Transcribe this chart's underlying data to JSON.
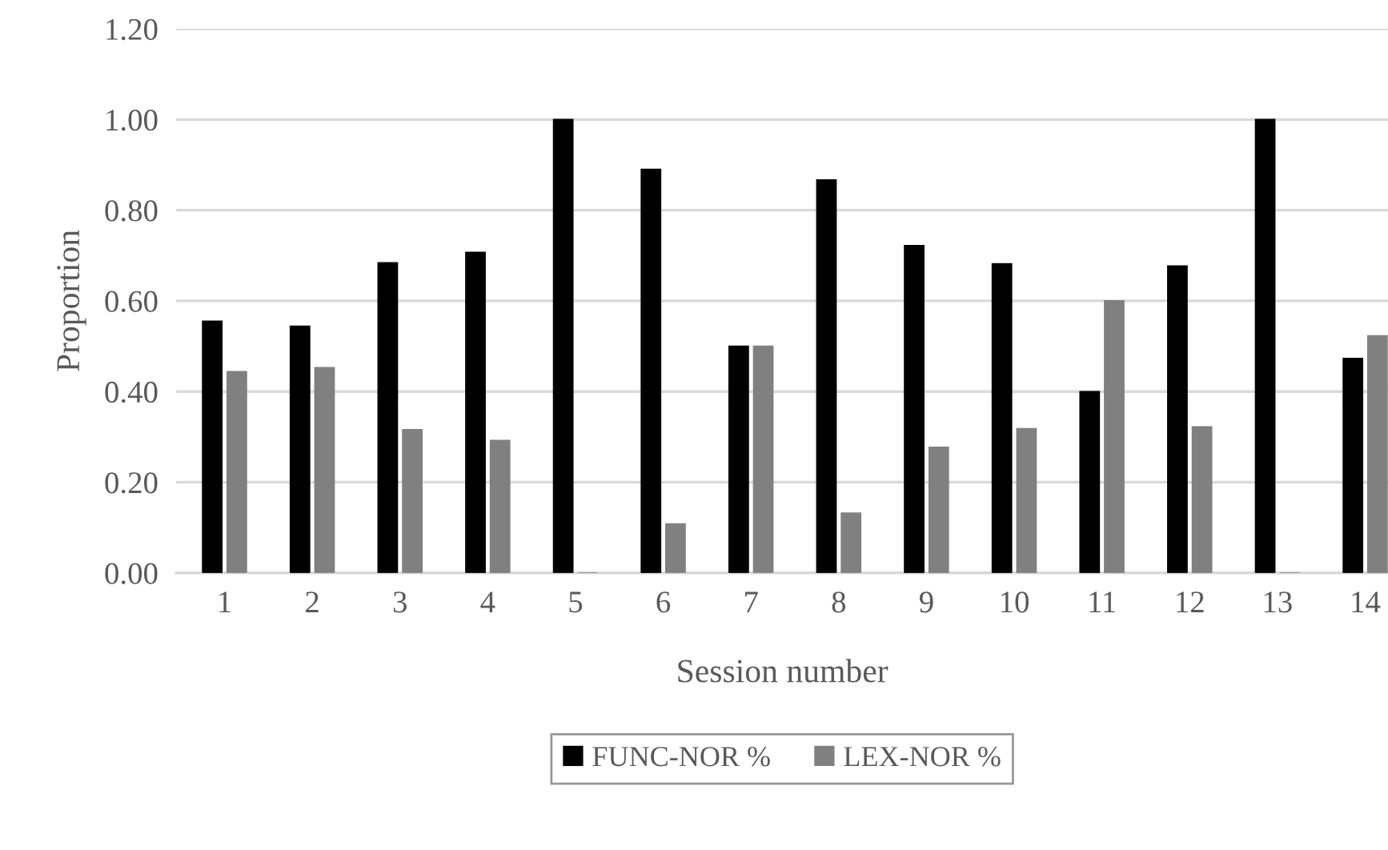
{
  "chart_data": {
    "type": "bar",
    "xlabel": "Session number",
    "ylabel": "Proportion",
    "categories": [
      "1",
      "2",
      "3",
      "4",
      "5",
      "6",
      "7",
      "8",
      "9",
      "10",
      "11",
      "12",
      "13",
      "14"
    ],
    "series": [
      {
        "name": "FUNC-NOR %",
        "color": "#000000",
        "values": [
          0.555,
          0.544,
          0.684,
          0.707,
          1.0,
          0.89,
          0.5,
          0.867,
          0.722,
          0.682,
          0.4,
          0.677,
          1.0,
          0.473
        ]
      },
      {
        "name": "LEX-NOR %",
        "color": "#808080",
        "values": [
          0.444,
          0.453,
          0.316,
          0.292,
          0.0,
          0.108,
          0.5,
          0.132,
          0.277,
          0.318,
          0.6,
          0.322,
          0.0,
          0.523
        ]
      }
    ],
    "ylim": [
      0,
      1.2
    ],
    "yticks": [
      {
        "value": 0,
        "label": "0.00"
      },
      {
        "value": 0.2,
        "label": "0.20"
      },
      {
        "value": 0.4,
        "label": "0.40"
      },
      {
        "value": 0.6,
        "label": "0.60"
      },
      {
        "value": 0.8,
        "label": "0.80"
      },
      {
        "value": 1.0,
        "label": "1.00"
      },
      {
        "value": 1.2,
        "label": "1.20"
      }
    ],
    "grid": "y",
    "legend": "bottom"
  }
}
